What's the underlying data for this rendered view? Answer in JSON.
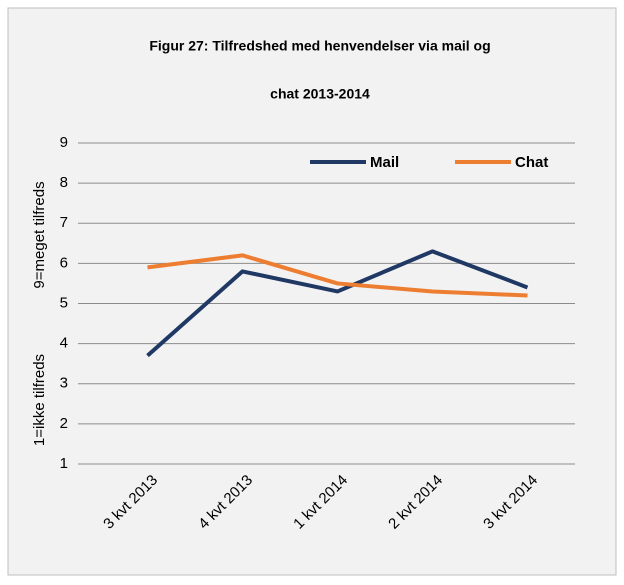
{
  "chart_data": {
    "type": "line",
    "title": [
      "Figur 27: Tilfredshed med henvendelser via mail og",
      "chat 2013-2014"
    ],
    "ylabel": [
      "1=ikke tilfreds",
      "9=meget tilfreds"
    ],
    "categories": [
      "3 kvt 2013",
      "4 kvt 2013",
      "1 kvt 2014",
      "2 kvt 2014",
      "3 kvt 2014"
    ],
    "series": [
      {
        "name": "Mail",
        "color": "#1f3864",
        "values": [
          3.7,
          5.8,
          5.3,
          6.3,
          5.4
        ]
      },
      {
        "name": "Chat",
        "color": "#ed7d31",
        "values": [
          5.9,
          6.2,
          5.5,
          5.3,
          5.2
        ]
      }
    ],
    "ylim": [
      1,
      9
    ],
    "yticks": [
      1,
      2,
      3,
      4,
      5,
      6,
      7,
      8,
      9
    ],
    "grid": true,
    "legend": "top-right"
  }
}
